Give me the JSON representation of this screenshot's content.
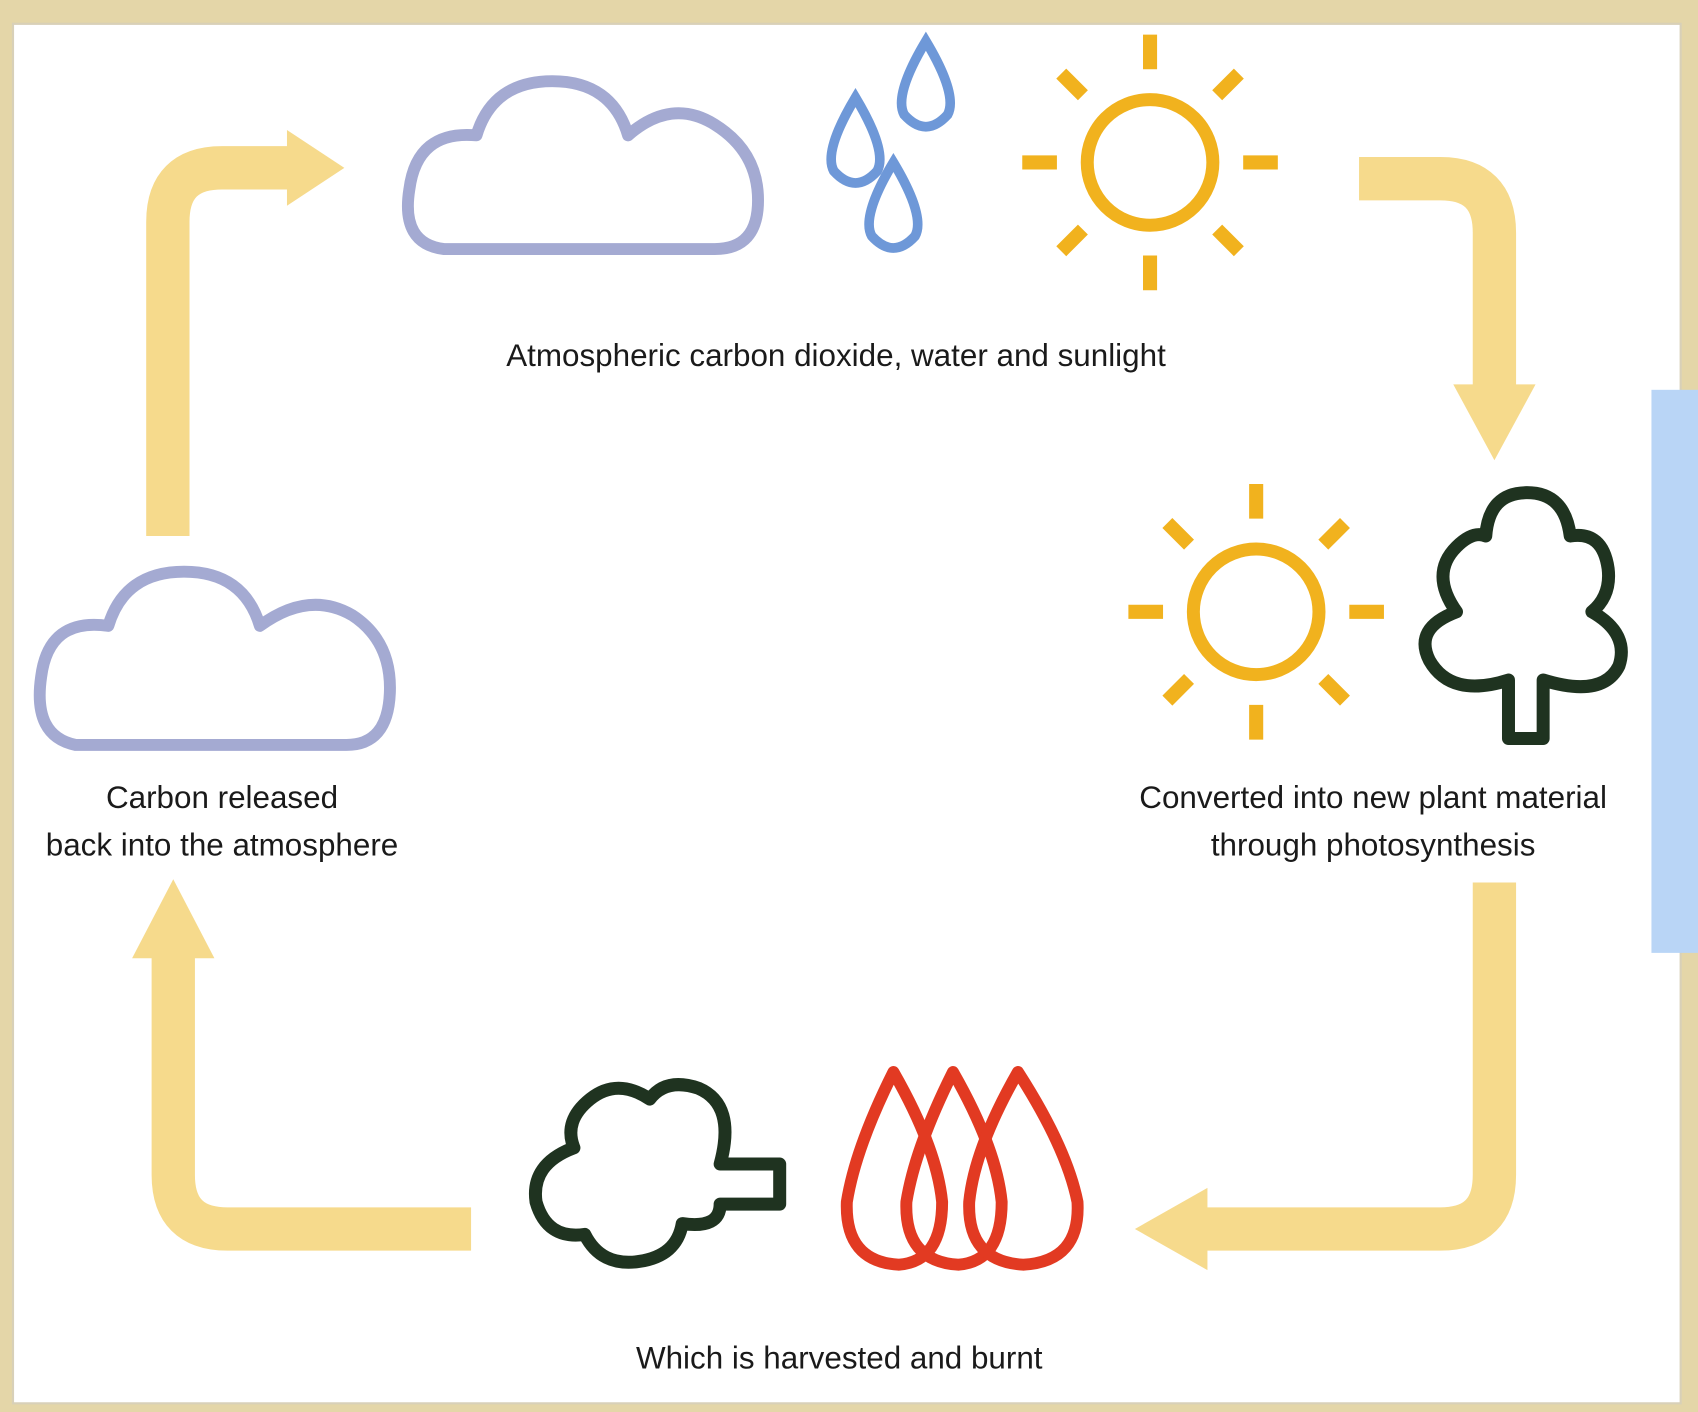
{
  "nodes": [
    {
      "label_lines": [
        "Atmospheric carbon dioxide, water and sunlight"
      ]
    },
    {
      "label_lines": [
        "Converted into new plant material",
        "through photosynthesis"
      ]
    },
    {
      "label_lines": [
        "Which is harvested and burnt"
      ]
    },
    {
      "label_lines": [
        "Carbon released",
        "back into the atmosphere"
      ]
    }
  ]
}
